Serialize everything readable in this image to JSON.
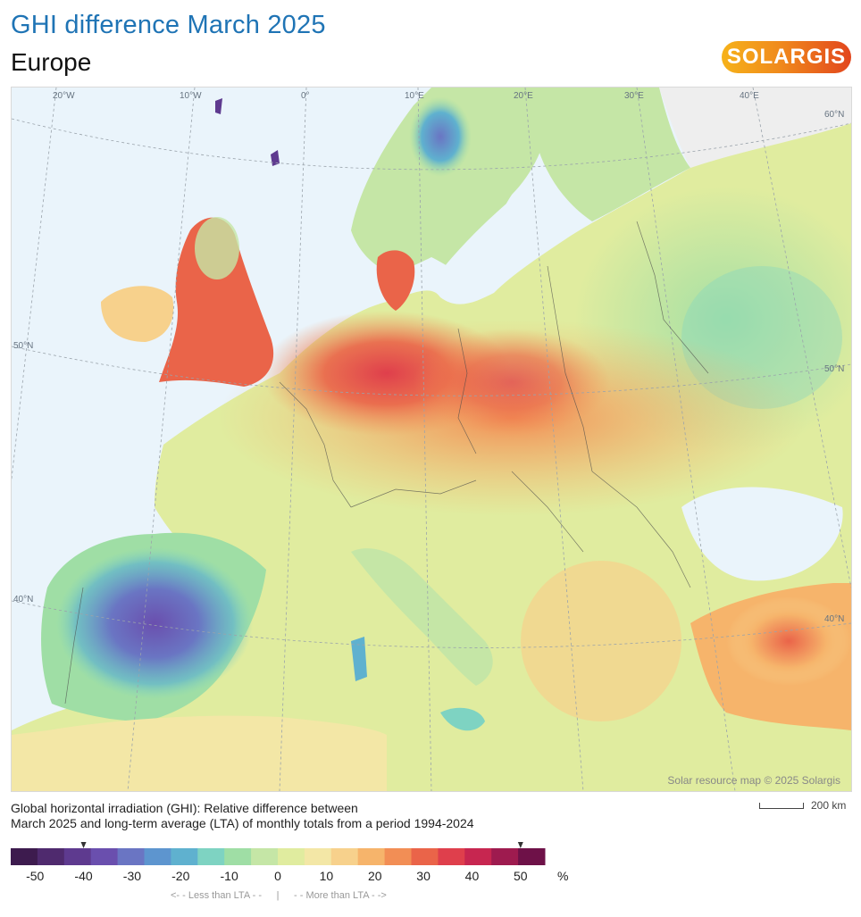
{
  "header": {
    "title": "GHI difference March 2025",
    "subtitle": "Europe",
    "logo_text": "SOLARGIS"
  },
  "map": {
    "graticule_labels": {
      "lon": [
        "20°W",
        "10°W",
        "0°",
        "10°E",
        "20°E",
        "30°E",
        "40°E"
      ],
      "lat_left": [
        "50°N",
        "40°N"
      ],
      "lat_right": [
        "60°N",
        "50°N",
        "40°N"
      ]
    },
    "credit": "Solar resource map © 2025 Solargis",
    "scale_bar_label": "200 km",
    "colors": {
      "sea": "#eaf4fb",
      "nodata": "#eeeeee",
      "border": "#4a4a4a"
    }
  },
  "caption": {
    "line1": "Global horizontal irradiation (GHI): Relative difference between",
    "line2": "March 2025 and long-term average (LTA) of monthly totals from a period 1994-2024"
  },
  "legend": {
    "colors": [
      "#3d1b4e",
      "#4f2a6e",
      "#5e3a8f",
      "#6a4fae",
      "#6a75c3",
      "#5d95cf",
      "#5fb1cf",
      "#7ed3c2",
      "#9fdea5",
      "#c5e6a6",
      "#e0ec9f",
      "#f3e7a6",
      "#f7d18c",
      "#f6b46b",
      "#f28e55",
      "#ea6449",
      "#df3f4c",
      "#c72650",
      "#9e1b4f",
      "#6e1148"
    ],
    "tick_labels": [
      "-50",
      "-40",
      "-30",
      "-20",
      "-10",
      "0",
      "10",
      "20",
      "30",
      "40",
      "50"
    ],
    "unit": "%",
    "less_label": "<- -  Less than LTA  - -",
    "separator": "|",
    "more_label": "- -  More than LTA  - ->",
    "observed_min": -40,
    "observed_max": 50
  }
}
